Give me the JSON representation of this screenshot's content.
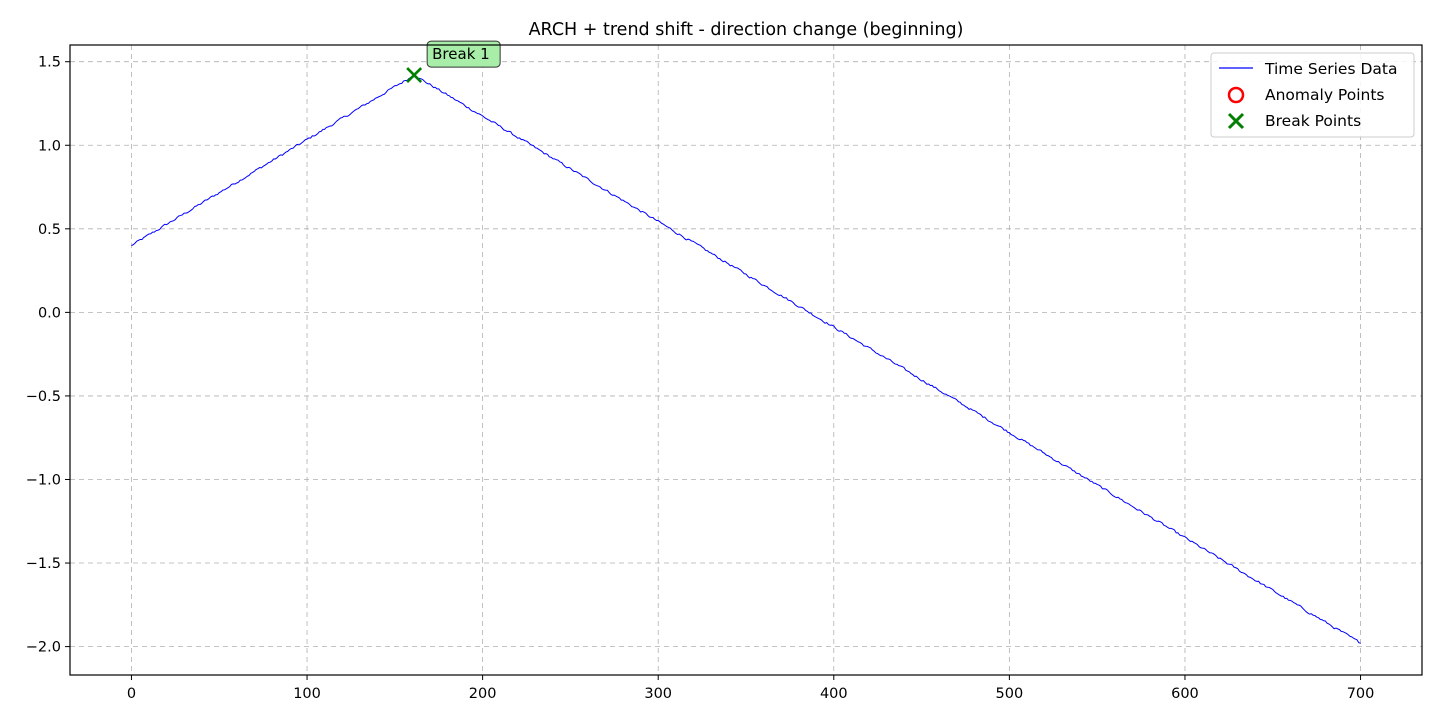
{
  "chart_data": {
    "type": "line",
    "title": "ARCH + trend shift - direction change (beginning)",
    "xlabel": "",
    "ylabel": "",
    "xlim": [
      -35,
      735
    ],
    "ylim": [
      -2.17,
      1.6
    ],
    "x_ticks": [
      0,
      100,
      200,
      300,
      400,
      500,
      600,
      700
    ],
    "y_ticks": [
      -2.0,
      -1.5,
      -1.0,
      -0.5,
      0.0,
      0.5,
      1.0,
      1.5
    ],
    "grid": true,
    "legend_position": "top-right",
    "legend": [
      {
        "label": "Time Series Data",
        "marker": "line",
        "color": "#0000ff"
      },
      {
        "label": "Anomaly Points",
        "marker": "circle",
        "color": "#ff0000"
      },
      {
        "label": "Break Points",
        "marker": "x",
        "color": "#008000"
      }
    ],
    "series": [
      {
        "name": "Time Series Data",
        "color": "#0000ff",
        "x_start": 0,
        "x_end": 700,
        "n_points": 701,
        "anchors": [
          [
            0,
            0.4
          ],
          [
            161,
            1.42
          ],
          [
            700,
            -1.98
          ]
        ],
        "noise_amplitude": 0.012
      }
    ],
    "anomaly_points": [],
    "break_points": [
      {
        "x": 161,
        "y": 1.42,
        "label": "Break 1"
      }
    ]
  }
}
